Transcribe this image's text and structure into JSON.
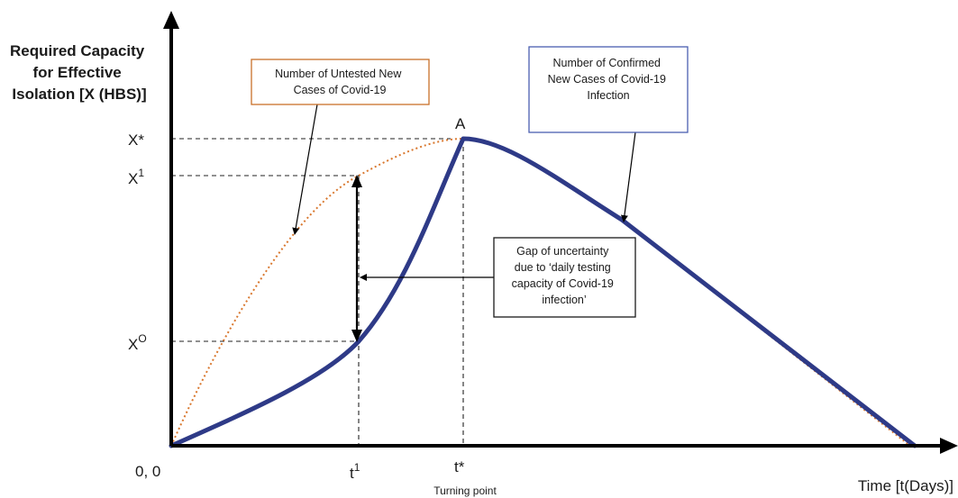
{
  "y_axis": {
    "title_lines": [
      "Required Capacity",
      "for Effective",
      "Isolation [X (HBS)]"
    ],
    "ticks": [
      {
        "id": "xstar",
        "main": "X*",
        "sup": ""
      },
      {
        "id": "x1",
        "main": "X",
        "sup": "1"
      },
      {
        "id": "x0",
        "main": "X",
        "sup": "O"
      }
    ]
  },
  "x_axis": {
    "title": "Time [t(Days)]",
    "origin": "0, 0",
    "ticks": [
      {
        "id": "t1",
        "main": "t",
        "sup": "1"
      },
      {
        "id": "tstar",
        "main": "t*",
        "sup": ""
      }
    ],
    "turning_point": "Turning point"
  },
  "peak_label": "A",
  "callouts": {
    "untested": {
      "lines": [
        "Number of Untested New",
        "Cases of Covid-19"
      ],
      "border_color": "#c8702a"
    },
    "confirmed": {
      "lines": [
        "Number of Confirmed",
        "New Cases of Covid-19",
        "Infection"
      ],
      "border_color": "#4a5fb0"
    },
    "gap": {
      "lines": [
        "Gap of uncertainty",
        "due to ‘daily testing",
        "capacity of Covid-19",
        "infection’"
      ],
      "border_color": "#1a1a1a"
    }
  },
  "colors": {
    "confirmed_curve": "#2e3a87",
    "untested_curve": "#d9782f",
    "axis": "#000000"
  }
}
